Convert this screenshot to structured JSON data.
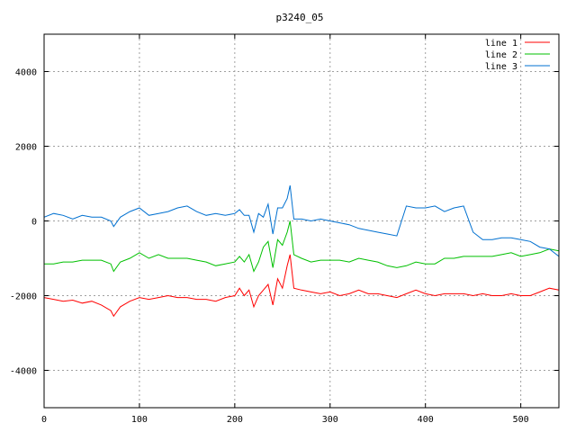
{
  "chart_data": {
    "type": "line",
    "title": "p3240_05",
    "xlabel": "",
    "ylabel": "",
    "xlim": [
      0,
      540
    ],
    "ylim": [
      -5000,
      5000
    ],
    "xticks": [
      0,
      100,
      200,
      300,
      400,
      500
    ],
    "yticks": [
      -4000,
      -2000,
      0,
      2000,
      4000
    ],
    "grid": true,
    "legend_position": "top-right",
    "x": [
      0,
      10,
      20,
      30,
      40,
      50,
      60,
      70,
      73,
      80,
      90,
      100,
      110,
      120,
      130,
      140,
      150,
      160,
      170,
      180,
      190,
      200,
      205,
      210,
      215,
      220,
      225,
      230,
      235,
      240,
      245,
      250,
      255,
      258,
      262,
      270,
      280,
      290,
      300,
      310,
      320,
      330,
      340,
      350,
      360,
      370,
      380,
      390,
      400,
      410,
      420,
      430,
      440,
      450,
      460,
      470,
      480,
      490,
      500,
      510,
      520,
      530,
      540
    ],
    "series": [
      {
        "name": "line 1",
        "color": "#ff0000",
        "values": [
          -2050,
          -2100,
          -2150,
          -2120,
          -2200,
          -2150,
          -2250,
          -2400,
          -2550,
          -2300,
          -2150,
          -2050,
          -2100,
          -2050,
          -2000,
          -2050,
          -2050,
          -2100,
          -2100,
          -2150,
          -2050,
          -2000,
          -1800,
          -2000,
          -1850,
          -2300,
          -2000,
          -1850,
          -1700,
          -2250,
          -1550,
          -1800,
          -1200,
          -900,
          -1800,
          -1850,
          -1900,
          -1950,
          -1900,
          -2000,
          -1950,
          -1850,
          -1950,
          -1950,
          -2000,
          -2050,
          -1950,
          -1850,
          -1950,
          -2000,
          -1950,
          -1950,
          -1950,
          -2000,
          -1950,
          -2000,
          -2000,
          -1950,
          -2000,
          -2000,
          -1900,
          -1800,
          -1850
        ]
      },
      {
        "name": "line 2",
        "color": "#00c000",
        "values": [
          -1150,
          -1150,
          -1100,
          -1100,
          -1050,
          -1050,
          -1050,
          -1150,
          -1350,
          -1100,
          -1000,
          -850,
          -1000,
          -900,
          -1000,
          -1000,
          -1000,
          -1050,
          -1100,
          -1200,
          -1150,
          -1100,
          -950,
          -1100,
          -900,
          -1350,
          -1100,
          -700,
          -550,
          -1250,
          -500,
          -650,
          -300,
          0,
          -900,
          -1000,
          -1100,
          -1050,
          -1050,
          -1050,
          -1100,
          -1000,
          -1050,
          -1100,
          -1200,
          -1250,
          -1200,
          -1100,
          -1150,
          -1150,
          -1000,
          -1000,
          -950,
          -950,
          -950,
          -950,
          -900,
          -850,
          -950,
          -900,
          -850,
          -750,
          -800
        ]
      },
      {
        "name": "line 3",
        "color": "#0070d0",
        "values": [
          100,
          200,
          150,
          50,
          150,
          100,
          100,
          0,
          -150,
          100,
          250,
          350,
          150,
          200,
          250,
          350,
          400,
          250,
          150,
          200,
          150,
          200,
          300,
          150,
          150,
          -300,
          200,
          100,
          450,
          -350,
          350,
          350,
          600,
          950,
          50,
          50,
          0,
          50,
          0,
          -50,
          -100,
          -200,
          -250,
          -300,
          -350,
          -400,
          400,
          350,
          350,
          400,
          250,
          350,
          400,
          -300,
          -500,
          -500,
          -450,
          -450,
          -500,
          -550,
          -700,
          -750,
          -950
        ]
      }
    ]
  }
}
